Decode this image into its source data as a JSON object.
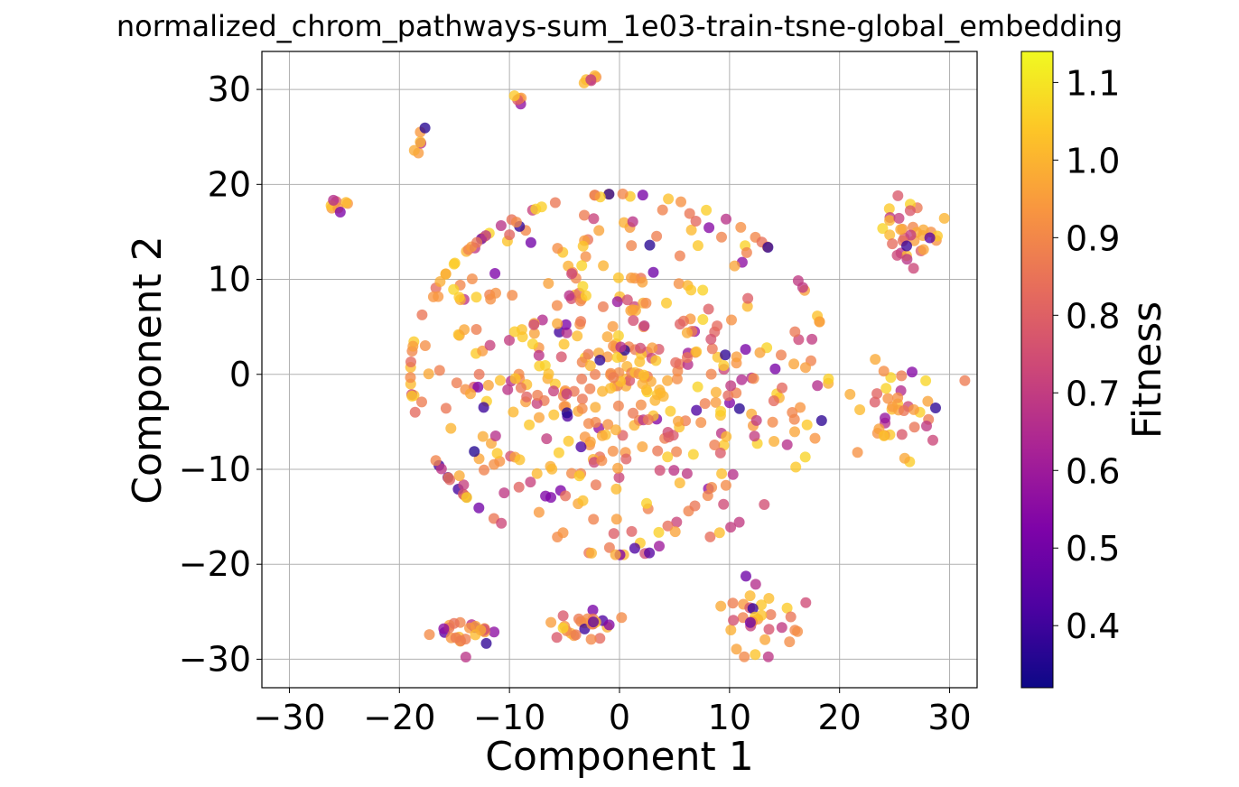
{
  "chart_data": {
    "type": "scatter",
    "title": "normalized_chrom_pathways-sum_1e03-train-tsne-global_embedding",
    "xlabel": "Component 1",
    "ylabel": "Component 2",
    "xlim": [
      -32.5,
      32.5
    ],
    "ylim": [
      -33,
      34
    ],
    "xticks": [
      -30,
      -20,
      -10,
      0,
      10,
      20,
      30
    ],
    "yticks": [
      -30,
      -20,
      -10,
      0,
      10,
      20,
      30
    ],
    "xtick_labels": [
      "−30",
      "−20",
      "−10",
      "0",
      "10",
      "20",
      "30"
    ],
    "ytick_labels": [
      "−30",
      "−20",
      "−10",
      "0",
      "10",
      "20",
      "30"
    ],
    "grid": true,
    "colormap": "plasma",
    "colorbar": {
      "label": "Fitness",
      "min": 0.32,
      "max": 1.14,
      "ticks": [
        0.4,
        0.5,
        0.6,
        0.7,
        0.8,
        0.9,
        1.0,
        1.1
      ],
      "tick_labels": [
        "0.4",
        "0.5",
        "0.6",
        "0.7",
        "0.8",
        "0.9",
        "1.0",
        "1.1"
      ]
    },
    "clusters": [
      {
        "cx": -25.5,
        "cy": 17.7,
        "n": 8,
        "sx": 0.6,
        "sy": 0.5
      },
      {
        "cx": -18.3,
        "cy": 24.0,
        "n": 6,
        "sx": 0.4,
        "sy": 0.8
      },
      {
        "cx": -9.2,
        "cy": 28.9,
        "n": 5,
        "sx": 0.3,
        "sy": 0.3
      },
      {
        "cx": -2.5,
        "cy": 31.0,
        "n": 6,
        "sx": 0.5,
        "sy": 0.3
      },
      {
        "cx": 26.0,
        "cy": 14.8,
        "n": 34,
        "sx": 1.8,
        "sy": 1.7
      },
      {
        "cx": 25.5,
        "cy": -3.5,
        "n": 40,
        "sx": 2.0,
        "sy": 2.2
      },
      {
        "cx": -14.0,
        "cy": -27.3,
        "n": 26,
        "sx": 1.4,
        "sy": 1.0
      },
      {
        "cx": -3.5,
        "cy": -26.4,
        "n": 26,
        "sx": 1.6,
        "sy": 0.8
      },
      {
        "cx": 12.5,
        "cy": -26.5,
        "n": 34,
        "sx": 1.6,
        "sy": 2.0
      },
      {
        "cx": -5.0,
        "cy": 0.5,
        "n": 300,
        "sx": 10.0,
        "sy": 10.0
      },
      {
        "cx": 5.0,
        "cy": 0.0,
        "n": 200,
        "sx": 8.0,
        "sy": 9.0
      }
    ]
  }
}
